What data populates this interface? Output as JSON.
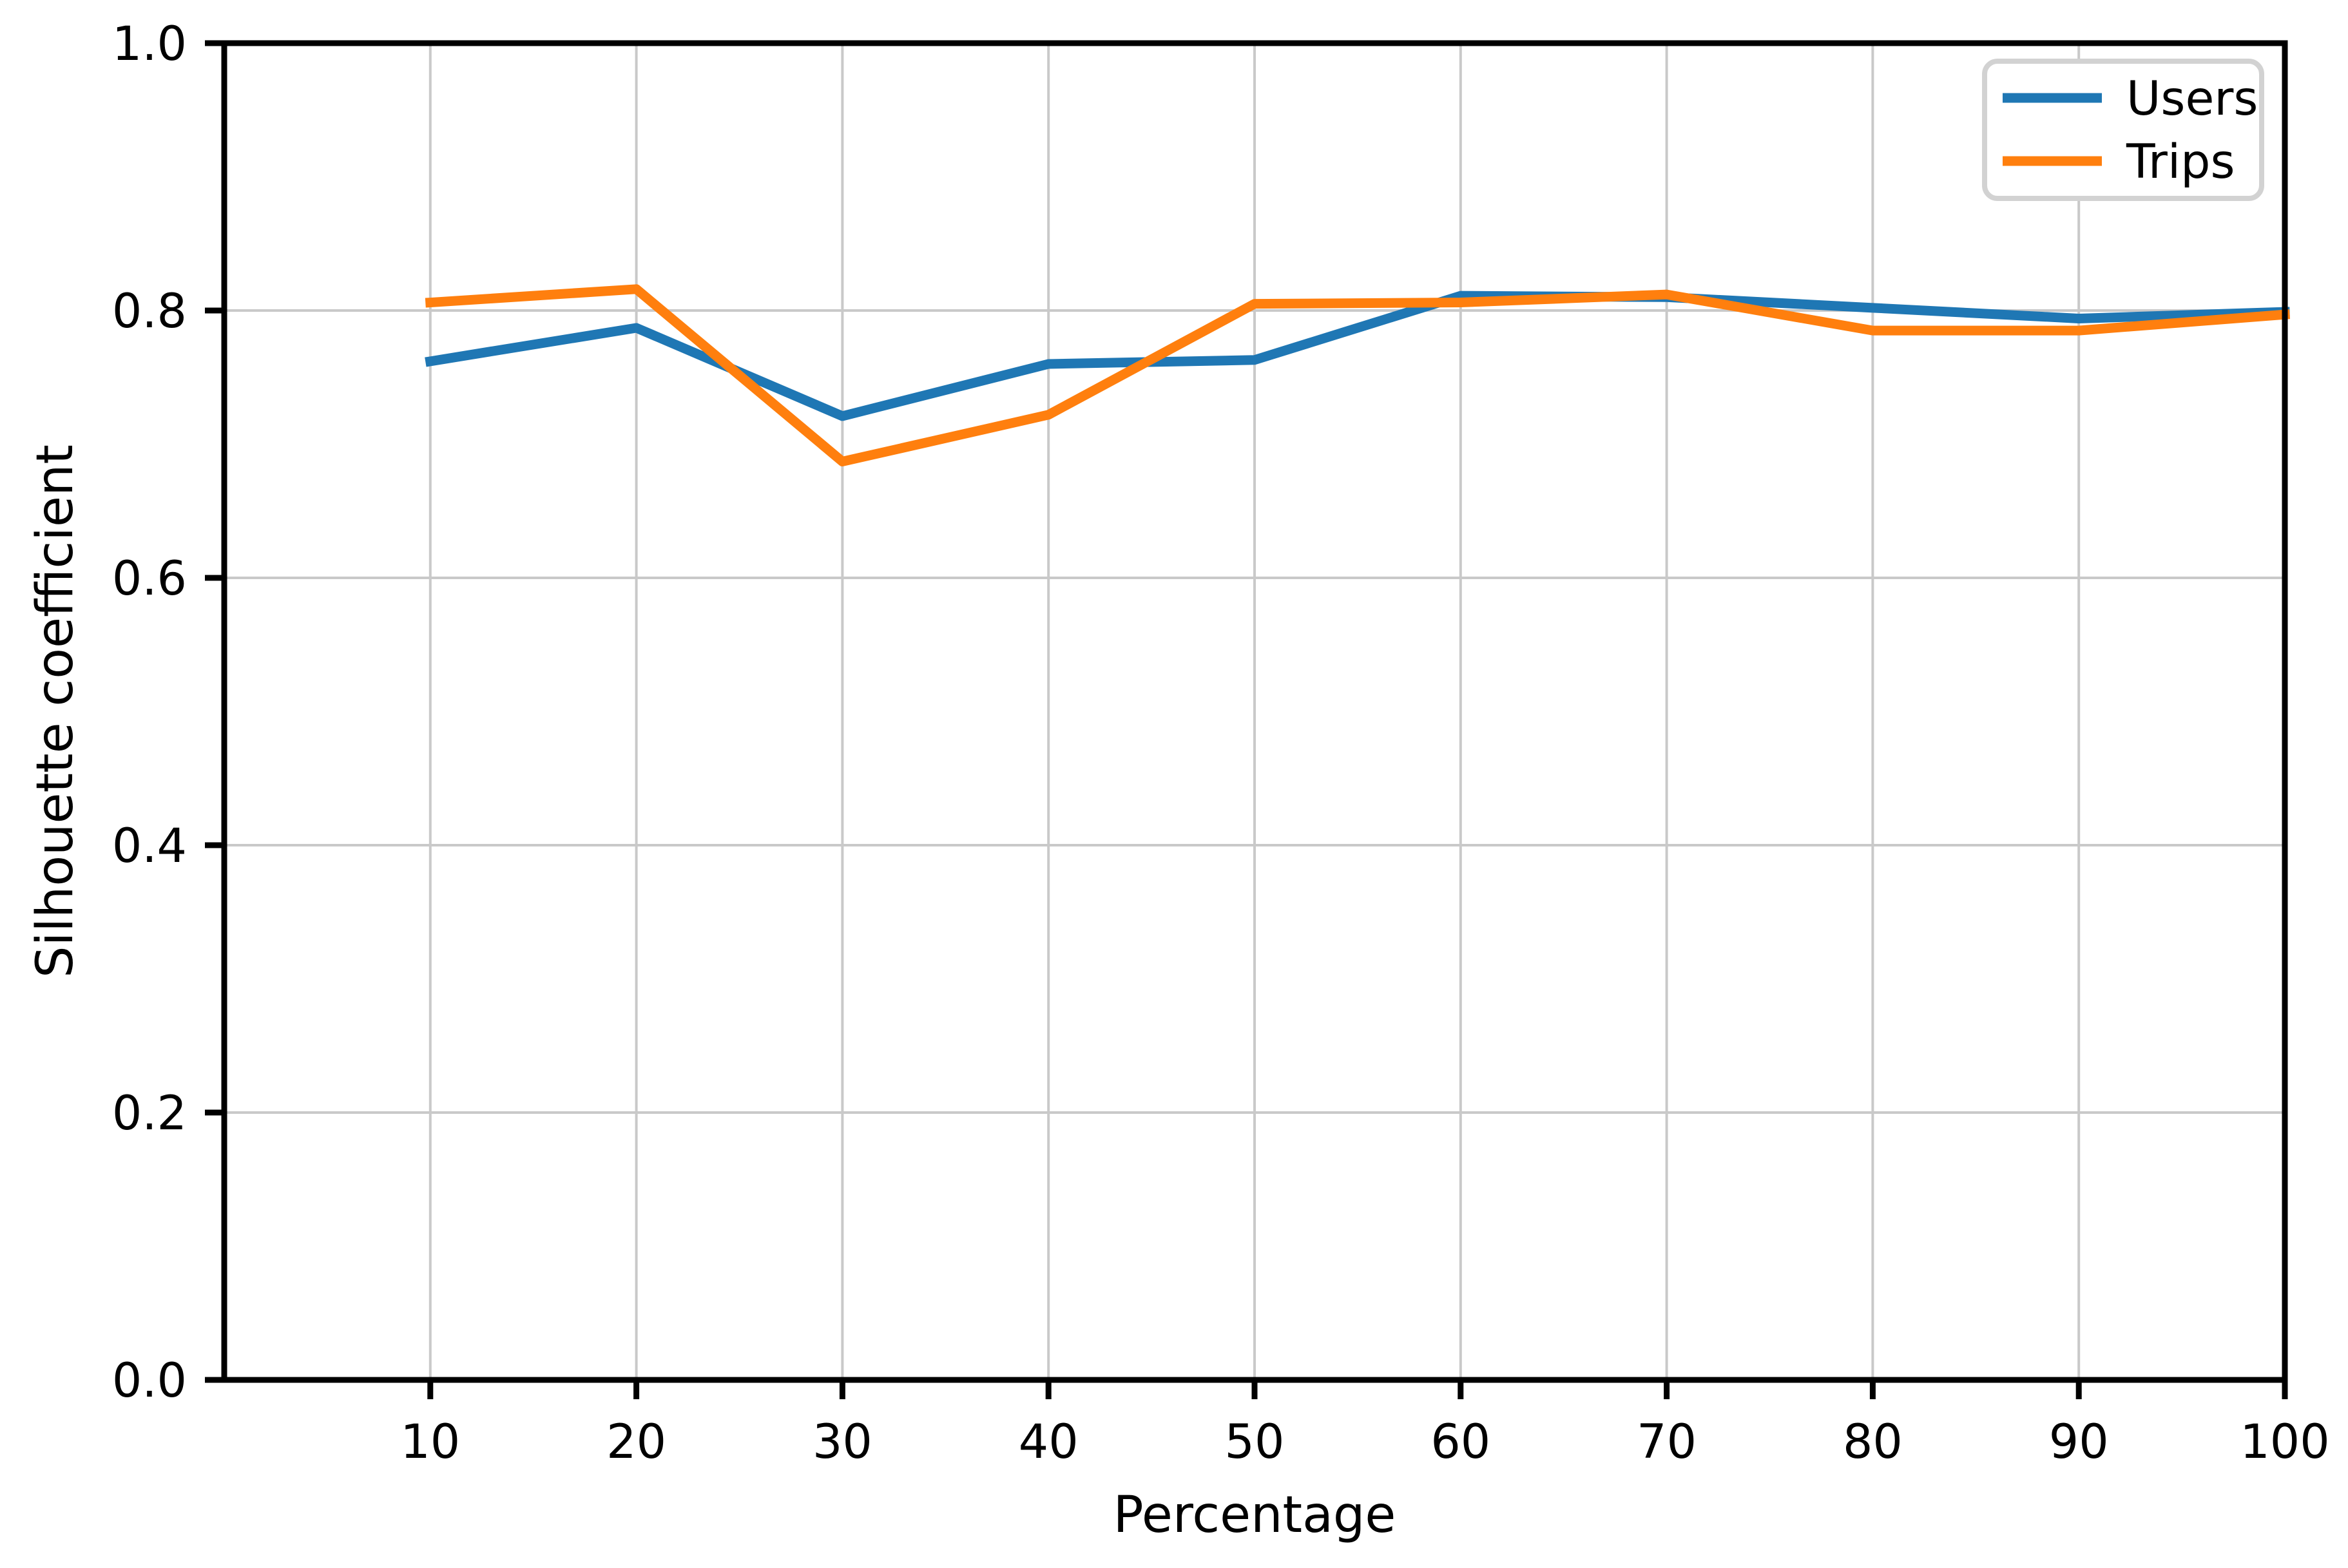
{
  "chart_data": {
    "type": "line",
    "title": "",
    "xlabel": "Percentage",
    "ylabel": "Silhouette coefficient",
    "x": [
      10,
      20,
      30,
      40,
      50,
      60,
      70,
      80,
      90,
      100
    ],
    "series": [
      {
        "name": "Users",
        "color": "#1f77b4",
        "values": [
          0.762,
          0.787,
          0.721,
          0.76,
          0.763,
          0.811,
          0.81,
          0.802,
          0.794,
          0.799
        ]
      },
      {
        "name": "Trips",
        "color": "#ff7f0e",
        "values": [
          0.806,
          0.816,
          0.687,
          0.722,
          0.805,
          0.806,
          0.812,
          0.785,
          0.785,
          0.797
        ]
      }
    ],
    "xlim": [
      0,
      100
    ],
    "ylim": [
      0.0,
      1.0
    ],
    "xtick_labels": [
      "10",
      "20",
      "30",
      "40",
      "50",
      "60",
      "70",
      "80",
      "90",
      "100"
    ],
    "ytick_values": [
      0.0,
      0.2,
      0.4,
      0.6,
      0.8,
      1.0
    ],
    "ytick_labels": [
      "0.0",
      "0.2",
      "0.4",
      "0.6",
      "0.8",
      "1.0"
    ],
    "grid": true,
    "grid_color": "#c9c9c9",
    "spine_color": "#000000",
    "legend": {
      "position": "upper right",
      "entries": [
        "Users",
        "Trips"
      ]
    }
  }
}
